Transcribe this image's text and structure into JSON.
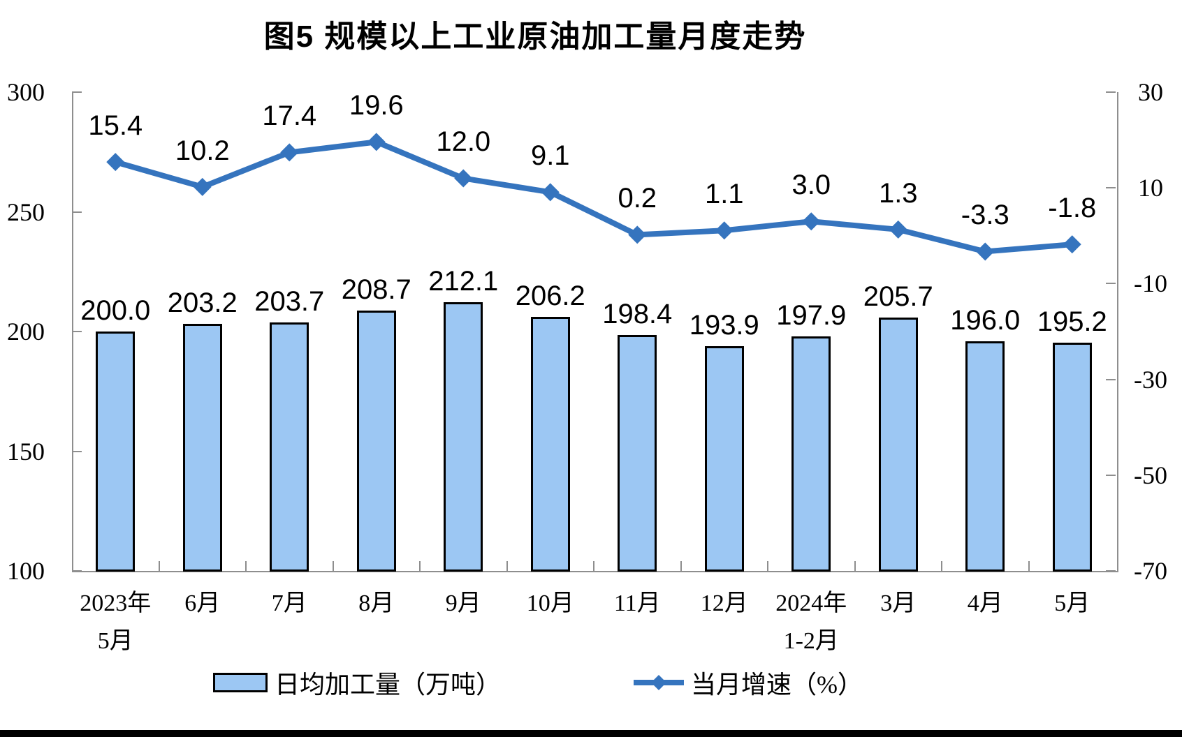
{
  "chart_data": {
    "type": "bar+line",
    "title": "图5  规模以上工业原油加工量月度走势",
    "categories": [
      "2023年\n5月",
      "6月",
      "7月",
      "8月",
      "9月",
      "10月",
      "11月",
      "12月",
      "2024年\n1-2月",
      "3月",
      "4月",
      "5月"
    ],
    "series": [
      {
        "name": "日均加工量（万吨）",
        "type": "bar",
        "axis": "left",
        "values": [
          200.0,
          203.2,
          203.7,
          208.7,
          212.1,
          206.2,
          198.4,
          193.9,
          197.9,
          205.7,
          196.0,
          195.2
        ],
        "labels": [
          "200.0",
          "203.2",
          "203.7",
          "208.7",
          "212.1",
          "206.2",
          "198.4",
          "193.9",
          "197.9",
          "205.7",
          "196.0",
          "195.2"
        ],
        "fill": "#9CC7F3",
        "border": "#000000"
      },
      {
        "name": "当月增速（%）",
        "type": "line",
        "axis": "right",
        "values": [
          15.4,
          10.2,
          17.4,
          19.6,
          12.0,
          9.1,
          0.2,
          1.1,
          3.0,
          1.3,
          -3.3,
          -1.8
        ],
        "labels": [
          "15.4",
          "10.2",
          "17.4",
          "19.6",
          "12.0",
          "9.1",
          "0.2",
          "1.1",
          "3.0",
          "1.3",
          "-3.3",
          "-1.8"
        ],
        "color": "#3574BE",
        "marker": "diamond"
      }
    ],
    "left_axis": {
      "min": 100,
      "max": 300,
      "ticks": [
        300,
        250,
        200,
        150,
        100
      ]
    },
    "right_axis": {
      "min": -70,
      "max": 30,
      "ticks": [
        30,
        10,
        -10,
        -30,
        -50,
        -70
      ]
    },
    "grid": false,
    "legend_position": "bottom",
    "legend": [
      {
        "label": "日均加工量（万吨）",
        "swatch": "bar"
      },
      {
        "label": "当月增速（%）",
        "swatch": "line"
      }
    ]
  }
}
